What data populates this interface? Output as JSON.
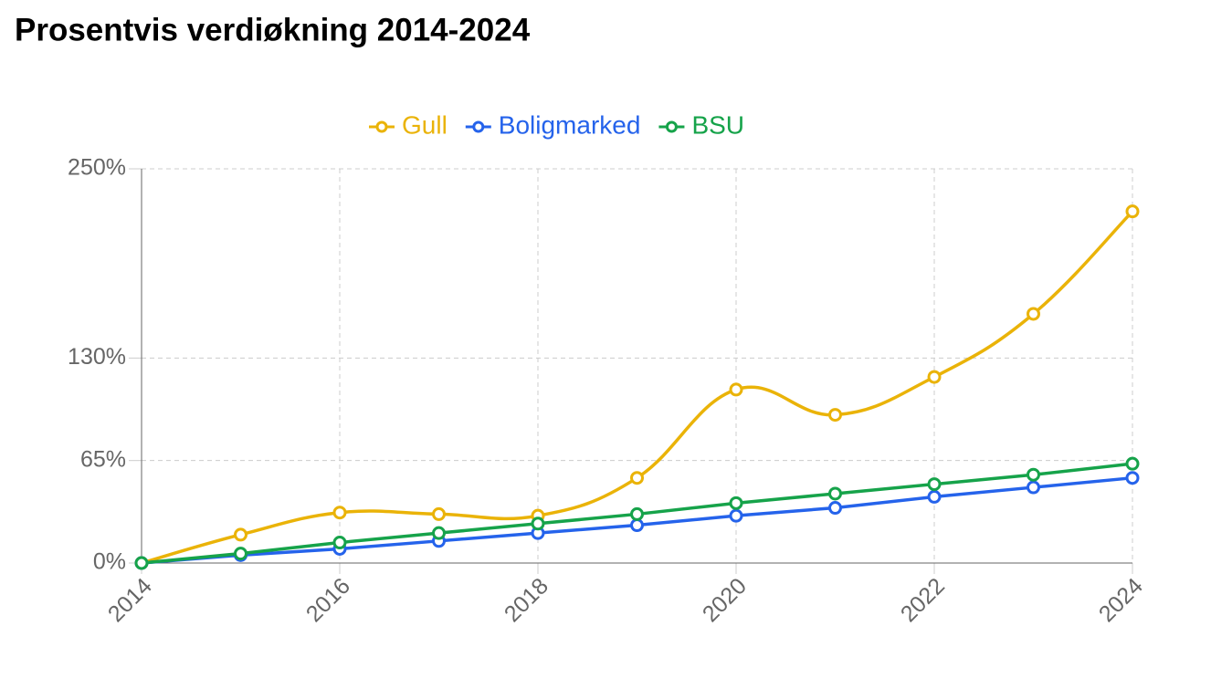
{
  "chart_data": {
    "type": "line",
    "title": "Prosentvis verdiøkning 2014-2024",
    "x": [
      2014,
      2015,
      2016,
      2017,
      2018,
      2019,
      2020,
      2021,
      2022,
      2023,
      2024
    ],
    "series": [
      {
        "name": "Gull",
        "color": "#eab308",
        "values": [
          0,
          18,
          32,
          31,
          30,
          54,
          110,
          94,
          118,
          158,
          223
        ]
      },
      {
        "name": "Boligmarked",
        "color": "#2563eb",
        "values": [
          0,
          5,
          9,
          14,
          19,
          24,
          30,
          35,
          42,
          48,
          54
        ]
      },
      {
        "name": "BSU",
        "color": "#16a34a",
        "values": [
          0,
          6,
          13,
          19,
          25,
          31,
          38,
          44,
          50,
          56,
          63
        ]
      }
    ],
    "xlim": [
      2014,
      2024
    ],
    "xticks": [
      2014,
      2016,
      2018,
      2020,
      2022,
      2024
    ],
    "ylim": [
      0,
      250
    ],
    "yticks": [
      {
        "value": 0,
        "label": "0%"
      },
      {
        "value": 65,
        "label": "65%"
      },
      {
        "value": 130,
        "label": "130%"
      },
      {
        "value": 250,
        "label": "250%"
      }
    ],
    "grid": true,
    "legend": "top"
  }
}
